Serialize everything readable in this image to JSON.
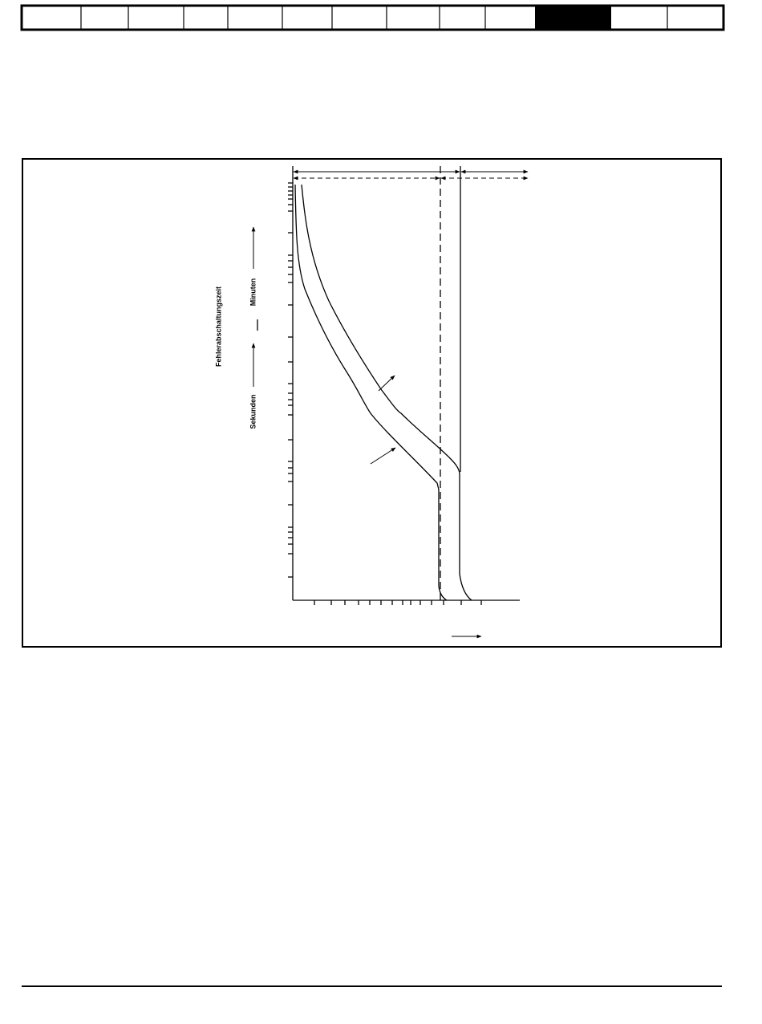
{
  "diagram": {
    "axis_title": "Fehlerabschaltungszeit",
    "upper_label": "Minuten",
    "lower_label": "Sekunden"
  }
}
